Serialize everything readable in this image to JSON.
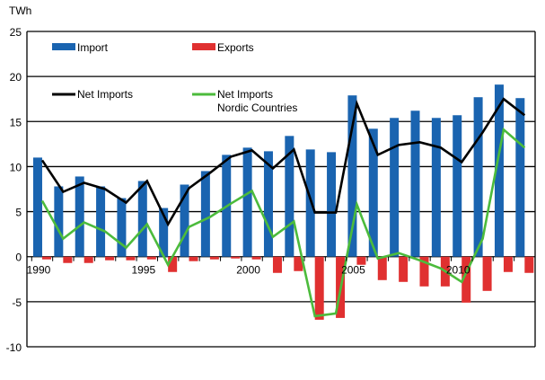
{
  "chart_data": {
    "type": "bar",
    "ylabel": "TWh",
    "ylim": [
      -10,
      25
    ],
    "yticks": [
      25,
      20,
      15,
      10,
      5,
      0,
      -5,
      -10
    ],
    "grid": true,
    "legend_placement": "top-left",
    "x": [
      1990,
      1991,
      1992,
      1993,
      1994,
      1995,
      1996,
      1997,
      1998,
      1999,
      2000,
      2001,
      2002,
      2003,
      2004,
      2005,
      2006,
      2007,
      2008,
      2009,
      2010,
      2011,
      2012,
      2013
    ],
    "xtick_labels": [
      "1990",
      "1995",
      "2000",
      "2005",
      "2010"
    ],
    "series": [
      {
        "name": "Import",
        "kind": "bar",
        "color": "#1a64b0",
        "values": [
          11.0,
          7.8,
          8.9,
          7.8,
          6.5,
          8.4,
          5.4,
          8.0,
          9.5,
          11.3,
          12.1,
          11.7,
          13.4,
          11.9,
          11.6,
          17.9,
          14.2,
          15.4,
          16.2,
          15.4,
          15.7,
          17.7,
          19.1,
          17.6
        ]
      },
      {
        "name": "Exports",
        "kind": "bar",
        "color": "#e03030",
        "values": [
          -0.3,
          -0.7,
          -0.7,
          -0.4,
          -0.4,
          -0.3,
          -1.7,
          -0.5,
          -0.3,
          -0.2,
          -0.3,
          -1.8,
          -1.6,
          -7.0,
          -6.8,
          -0.9,
          -2.6,
          -2.8,
          -3.3,
          -3.3,
          -5.1,
          -3.8,
          -1.7,
          -1.8
        ]
      },
      {
        "name": "Net Imports",
        "kind": "line",
        "color": "#000000",
        "values": [
          10.7,
          7.2,
          8.2,
          7.5,
          6.0,
          8.4,
          3.6,
          7.6,
          9.3,
          11.1,
          11.8,
          9.8,
          11.9,
          4.9,
          4.9,
          17.0,
          11.3,
          12.4,
          12.7,
          12.1,
          10.5,
          13.8,
          17.5,
          15.7
        ]
      },
      {
        "name": "Net Imports Nordic Countries",
        "name_lines": [
          "Net Imports",
          "Nordic Countries"
        ],
        "kind": "line",
        "color": "#4cbb3c",
        "values": [
          6.2,
          2.0,
          3.8,
          2.8,
          1.0,
          3.6,
          -0.9,
          3.3,
          4.4,
          5.9,
          7.3,
          2.2,
          3.9,
          -6.6,
          -6.3,
          5.8,
          -0.2,
          0.4,
          -0.4,
          -1.3,
          -2.8,
          2.0,
          14.1,
          12.1
        ]
      }
    ]
  }
}
